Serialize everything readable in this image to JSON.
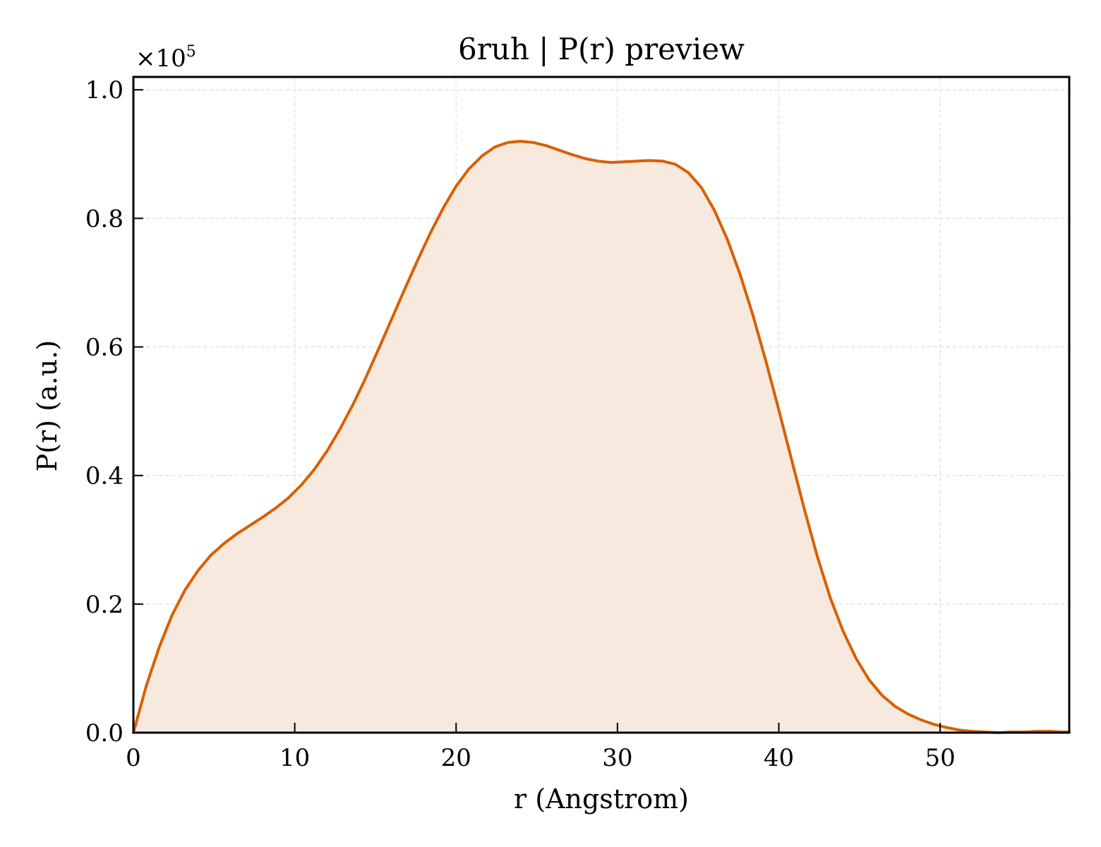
{
  "chart_data": {
    "type": "area",
    "title": "6ruh | P(r) preview",
    "xlabel": "r (Angstrom)",
    "ylabel": "P(r) (a.u.)",
    "y_scale_prefix": "×10",
    "y_scale_exponent": "5",
    "xlim": [
      0,
      58
    ],
    "ylim": [
      0,
      1.02
    ],
    "x_ticks": [
      0,
      10,
      20,
      30,
      40,
      50
    ],
    "x_tick_labels": [
      "0",
      "10",
      "20",
      "30",
      "40",
      "50"
    ],
    "y_ticks": [
      0,
      0.2,
      0.4,
      0.6,
      0.8,
      1.0
    ],
    "y_tick_labels": [
      "0.0",
      "0.2",
      "0.4",
      "0.6",
      "0.8",
      "1.0"
    ],
    "grid": true,
    "line_color": "#d95f02",
    "fill_color": "#f8e9de",
    "series": [
      {
        "x": [
          0,
          0.8,
          1.6,
          2.4,
          3.2,
          4.0,
          4.8,
          5.6,
          6.4,
          7.2,
          8.0,
          8.8,
          9.6,
          10.4,
          11.2,
          12.0,
          12.8,
          13.6,
          14.4,
          15.2,
          16.0,
          16.8,
          17.6,
          18.4,
          19.2,
          20.0,
          20.8,
          21.6,
          22.4,
          23.2,
          24.0,
          24.8,
          25.6,
          26.4,
          27.2,
          28.0,
          28.8,
          29.6,
          30.4,
          31.2,
          32.0,
          32.8,
          33.6,
          34.4,
          35.2,
          36.0,
          36.8,
          37.6,
          38.4,
          39.2,
          40.0,
          40.8,
          41.6,
          42.4,
          43.2,
          44.0,
          44.8,
          45.6,
          46.4,
          47.2,
          48.0,
          48.8,
          49.6,
          50.4,
          51.2,
          52.0,
          52.8,
          53.6,
          54.4,
          55.2,
          56.0,
          56.8,
          57.6,
          58.0
        ],
        "y": [
          0.0,
          0.073,
          0.133,
          0.183,
          0.222,
          0.252,
          0.276,
          0.294,
          0.309,
          0.322,
          0.335,
          0.349,
          0.365,
          0.385,
          0.409,
          0.438,
          0.472,
          0.51,
          0.552,
          0.597,
          0.643,
          0.689,
          0.734,
          0.777,
          0.816,
          0.85,
          0.877,
          0.897,
          0.911,
          0.918,
          0.92,
          0.918,
          0.913,
          0.906,
          0.899,
          0.893,
          0.889,
          0.887,
          0.888,
          0.889,
          0.89,
          0.889,
          0.884,
          0.871,
          0.848,
          0.813,
          0.768,
          0.713,
          0.649,
          0.578,
          0.502,
          0.424,
          0.346,
          0.273,
          0.209,
          0.157,
          0.115,
          0.082,
          0.058,
          0.041,
          0.029,
          0.02,
          0.013,
          0.008,
          0.004,
          0.002,
          0.001,
          0.0,
          0.001,
          0.001,
          0.002,
          0.002,
          0.001,
          0.001
        ]
      }
    ]
  }
}
